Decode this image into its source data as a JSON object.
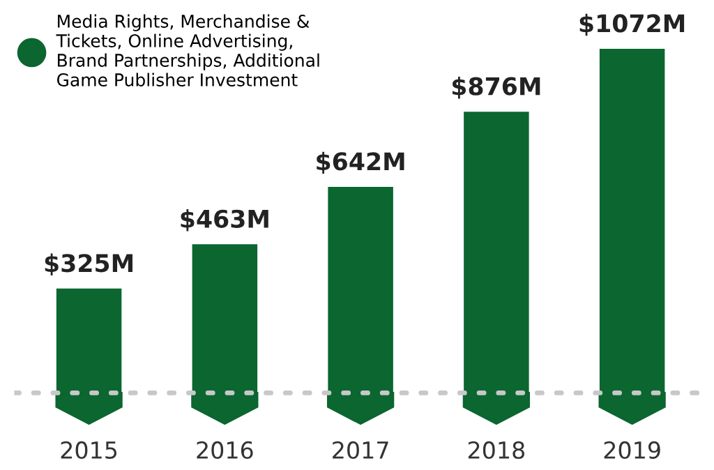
{
  "chart_data": {
    "type": "bar",
    "categories": [
      "2015",
      "2016",
      "2017",
      "2018",
      "2019"
    ],
    "series": [
      {
        "name": "Media Rights, Merchandise & Tickets, Online Advertising, Brand Partnerships, Additional Game Publisher Investment",
        "color": "#0b6630",
        "values": [
          325,
          463,
          642,
          876,
          1072
        ],
        "value_labels": [
          "$325M",
          "$463M",
          "$642M",
          "$876M",
          "$1072M"
        ]
      }
    ],
    "legend": "top left",
    "grid": false
  }
}
